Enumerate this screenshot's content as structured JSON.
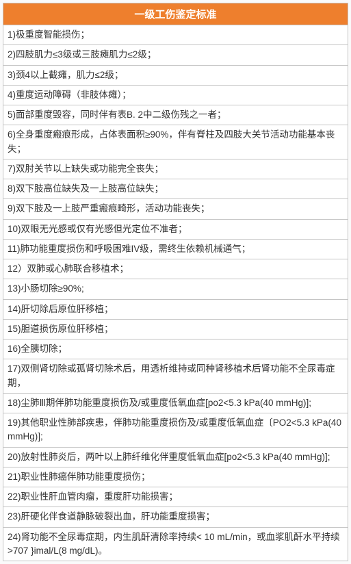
{
  "table": {
    "title": "一级工伤鉴定标准",
    "header_bg": "#ee7f2d",
    "header_color": "#ffffff",
    "border_color": "#c4c4c4",
    "text_color": "#333333",
    "rows": [
      "1)极重度智能损伤；",
      "2)四肢肌力≤3级或三肢瘫肌力≤2级；",
      "3)颈4以上截瘫，肌力≤2级；",
      "4)重度运动障碍（非肢体瘫）；",
      "5)面部重度毁容，同时伴有表B. 2中二级伤残之一者；",
      "6)全身重度瘢痕形成，占体表面积≥90%，伴有脊柱及四肢大关节活动功能基本丧失；",
      "7)双肘关节以上缺失或功能完全丧失；",
      "8)双下肢高位缺失及一上肢高位缺失；",
      "9)双下肢及一上肢严重瘢痕畸形，活动功能丧失；",
      "10)双眼无光感或仅有光感但光定位不准者；",
      "11)肺功能重度损伤和呼吸困难IV级，需终生依赖机械通气；",
      "12）双肺或心肺联合移植术；",
      "13)小肠切除≥90%;",
      "14)肝切除后原位肝移植；",
      "15)胆道损伤原位肝移植；",
      "16)全胰切除；",
      "17)双侧肾切除或孤肾切除术后，用透析维持或同种肾移植术后肾功能不全尿毒症期，",
      "18)尘肺Ⅲ期伴肺功能重度损伤及/或重度低氧血症[po2<5.3 kPa(40 mmHg)];",
      "19)其他职业性肺部疾患，伴肺功能重度损伤及/或重度低氧血症〔PO2<5.3 kPa(40 mmHg)];",
      "20)放射性肺炎后，两叶以上肺纤维化伴重度低氧血症[po2<5.3 kPa(40 mmHg)];",
      "21)职业性肺癌伴肺功能重度损伤；",
      "22)职业性肝血管肉瘤，重度肝功能损害；",
      "23)肝硬化伴食道静脉破裂出血，肝功能重度损害；",
      "24)肾功能不全尿毒症期，内生肌酐清除率持续< 10 mL/min，或血浆肌酐水平持续>707 }imal/L(8 mg/dL)。"
    ]
  }
}
